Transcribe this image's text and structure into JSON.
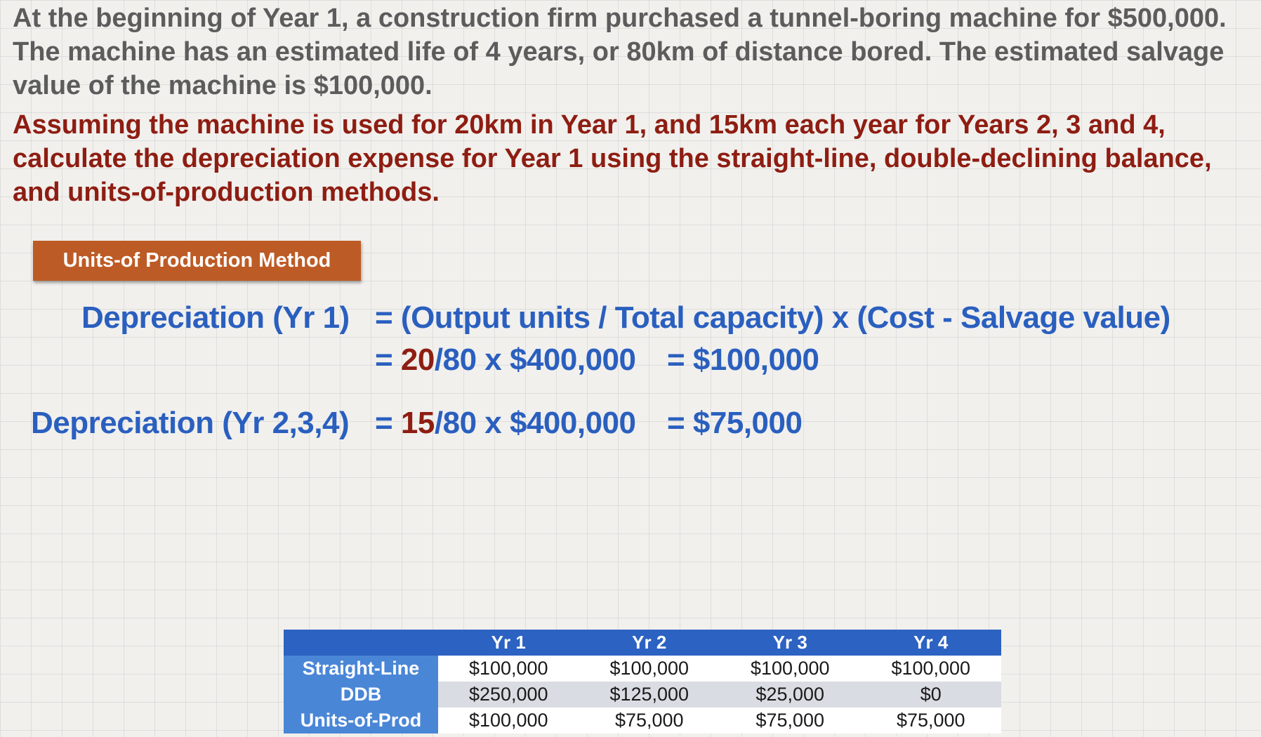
{
  "problem": {
    "statement": "At the beginning of Year 1, a construction firm purchased a tunnel-boring machine for $500,000.  The machine has an estimated life of 4 years, or 80km of distance bored.  The estimated salvage value of the machine is $100,000.",
    "prompt": "Assuming the machine is used for 20km in Year 1, and 15km each year for Years 2, 3 and 4, calculate the depreciation expense for Year 1 using the straight-line, double-declining balance, and units-of-production methods."
  },
  "method": {
    "label": "Units-of Production Method"
  },
  "equations": {
    "yr1": {
      "lhs": "Depreciation (Yr 1)",
      "formula": "= (Output units / Total capacity) x (Cost - Salvage value)",
      "calc_prefix": "= ",
      "calc_units": "20",
      "calc_rest": "/80 x $400,000",
      "result": "= $100,000"
    },
    "yr234": {
      "lhs": "Depreciation (Yr 2,3,4)",
      "calc_prefix": "= ",
      "calc_units": "15",
      "calc_rest": "/80 x $400,000",
      "result": "= $75,000"
    }
  },
  "table": {
    "headers": [
      "",
      "Yr 1",
      "Yr 2",
      "Yr 3",
      "Yr 4"
    ],
    "rows": [
      {
        "label": "Straight-Line",
        "values": [
          "$100,000",
          "$100,000",
          "$100,000",
          "$100,000"
        ]
      },
      {
        "label": "DDB",
        "values": [
          "$250,000",
          "$125,000",
          "$25,000",
          "$0"
        ]
      },
      {
        "label": "Units-of-Prod",
        "values": [
          "$100,000",
          "$75,000",
          "$75,000",
          "$75,000"
        ]
      }
    ]
  },
  "colors": {
    "body_text": "#5c5c5c",
    "prompt_text": "#8e1d12",
    "equation_text": "#2a5fbf",
    "badge_bg": "#bd5b26",
    "table_header_bg": "#2c62c2",
    "row_label_bg": "#4a86d6"
  }
}
